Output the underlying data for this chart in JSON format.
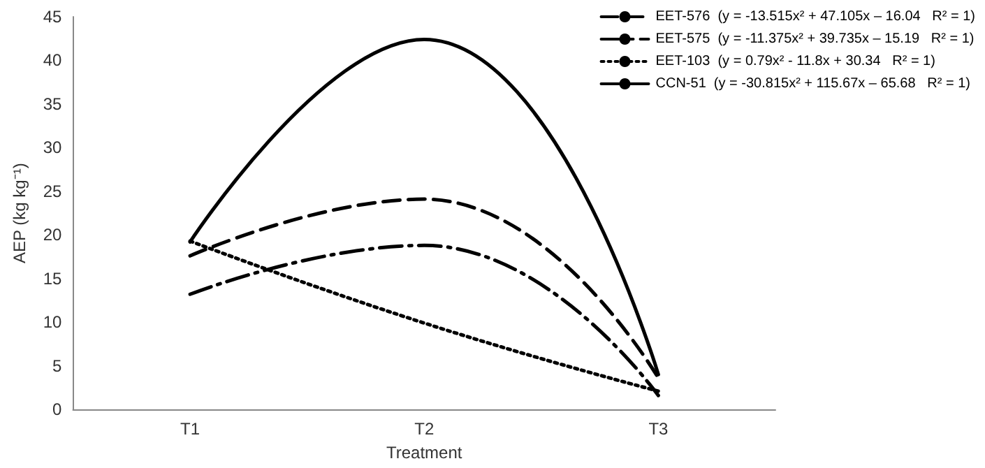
{
  "chart_data": {
    "type": "line",
    "xlabel": "Treatment",
    "ylabel": "AEP (kg kg⁻¹)",
    "categories": [
      "T1",
      "T2",
      "T3"
    ],
    "series": [
      {
        "name": "EET-576  (y = -13.515x² + 47.105x – 16.04   R² = 1)",
        "color": "#000000",
        "line_style": "dashed",
        "values": [
          17.6,
          24.1,
          3.6
        ]
      },
      {
        "name": "EET-575  (y = -11.375x² + 39.735x – 15.19   R² = 1)",
        "color": "#000000",
        "line_style": "dashed",
        "values": [
          13.2,
          18.8,
          1.6
        ]
      },
      {
        "name": "EET-103  (y = 0.79x² - 11.8x + 30.34   R² = 1)",
        "color": "#000000",
        "line_style": "dotted",
        "values": [
          19.3,
          9.9,
          2.1
        ]
      },
      {
        "name": "CCN-51  (y = -30.815x² + 115.67x – 65.68   R² = 1)",
        "color": "#000000",
        "line_style": "solid",
        "values": [
          19.2,
          42.4,
          4.0
        ]
      }
    ],
    "ylim": [
      0,
      45
    ],
    "yticks": [
      0,
      5,
      10,
      15,
      20,
      25,
      30,
      35,
      40,
      45
    ],
    "grid": false,
    "legend": "top right",
    "marker": "none"
  }
}
